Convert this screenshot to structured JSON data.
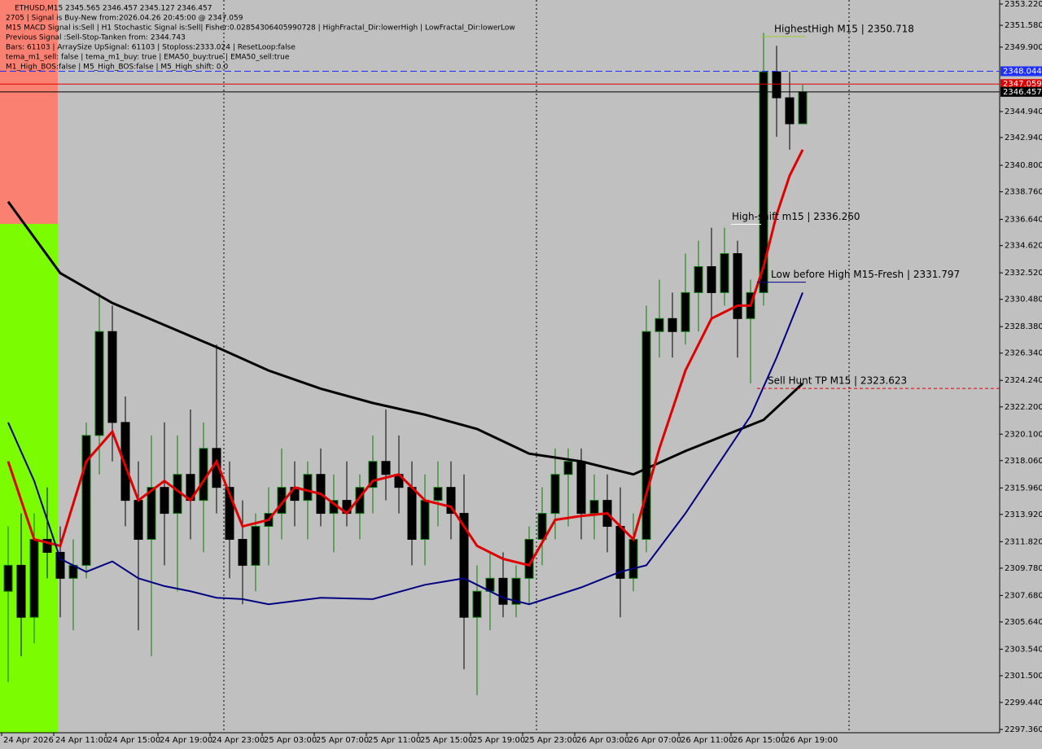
{
  "chart_data": {
    "type": "candlestick",
    "annotations": [
      "ETHUSD,M15  2345.565 2346.457 2345.127 2346.457",
      "2705 | Signal is Buy-New from:2026.04.26 20:45:00 @ 2347.059",
      "M15 MACD Signal is:Sell | H1 Stochastic Signal is:Sell| Fisher:0.02854306405990728 | HighFractal_Dir:lowerHigh | LowFractal_Dir:lowerLow",
      "Previous Signal :Sell-Stop-Tanken from: 2344.743",
      "Bars: 61103 | ArraySize UpSignal: 61103 | Stoploss:2333.024 | ResetLoop:false",
      "tema_m1_sell: false | tema_m1_buy: true | EMA50_buy:true | EMA50_sell:true",
      "M1_High_BOS:false | M5_High_BOS:false | M5_High_shift: 0.0"
    ],
    "categories": [
      "24 Apr 2026",
      null,
      null,
      null,
      "24 Apr 11:00",
      null,
      null,
      null,
      "24 Apr 15:00",
      null,
      null,
      null,
      "24 Apr 19:00",
      null,
      null,
      null,
      "24 Apr 23:00",
      null,
      null,
      null,
      "25 Apr 03:00",
      null,
      null,
      null,
      "25 Apr 07:00",
      null,
      null,
      null,
      "25 Apr 11:00",
      null,
      null,
      null,
      "25 Apr 15:00",
      null,
      null,
      null,
      "25 Apr 19:00",
      null,
      null,
      null,
      "25 Apr 23:00",
      null,
      null,
      null,
      "26 Apr 03:00",
      null,
      null,
      null,
      "26 Apr 07:00",
      null,
      null,
      null,
      "26 Apr 11:00",
      null,
      null,
      null,
      "26 Apr 15:00",
      null,
      null,
      null,
      "26 Apr 19:00",
      null
    ],
    "open": [
      2308,
      2310,
      2306,
      2312,
      2311,
      2309,
      2310,
      2320,
      2328,
      2321,
      2315,
      2312,
      2316,
      2314,
      2317,
      2315,
      2319,
      2316,
      2312,
      2310,
      2313,
      2314,
      2316,
      2315,
      2317,
      2314,
      2315,
      2314,
      2316,
      2318,
      2317,
      2316,
      2312,
      2315,
      2316,
      2314,
      2306,
      2308,
      2309,
      2307,
      2309,
      2312,
      2314,
      2317,
      2318,
      2314,
      2315,
      2313,
      2309,
      2312,
      2328,
      2329,
      2328,
      2331,
      2333,
      2331,
      2334,
      2329,
      2331,
      2348,
      2346,
      2344
    ],
    "high": [
      2313,
      2314,
      2314,
      2316,
      2313,
      2312,
      2321,
      2331,
      2330,
      2323,
      2318,
      2320,
      2321,
      2320,
      2322,
      2321,
      2327,
      2318,
      2315,
      2314,
      2316,
      2319,
      2318,
      2318,
      2319,
      2317,
      2318,
      2317,
      2320,
      2322,
      2320,
      2318,
      2317,
      2318,
      2318,
      2317,
      2310,
      2311,
      2311,
      2310,
      2313,
      2316,
      2319,
      2319,
      2319,
      2317,
      2317,
      2316,
      2314,
      2330,
      2332,
      2331,
      2334,
      2335,
      2336,
      2336,
      2335,
      2332,
      2351,
      2350,
      2348,
      2347
    ],
    "low": [
      2301,
      2303,
      2304,
      2309,
      2306,
      2305,
      2309,
      2317,
      2318,
      2313,
      2305,
      2303,
      2310,
      2308,
      2312,
      2311,
      2314,
      2309,
      2307,
      2308,
      2310,
      2312,
      2313,
      2312,
      2313,
      2311,
      2313,
      2312,
      2314,
      2315,
      2314,
      2310,
      2310,
      2313,
      2312,
      2302,
      2300,
      2305,
      2306,
      2306,
      2307,
      2310,
      2312,
      2313,
      2312,
      2312,
      2311,
      2306,
      2308,
      2311,
      2326,
      2326,
      2327,
      2328,
      2329,
      2330,
      2326,
      2324,
      2330,
      2343,
      2342,
      2344
    ],
    "close": [
      2310,
      2306,
      2312,
      2311,
      2309,
      2310,
      2320,
      2328,
      2321,
      2315,
      2312,
      2316,
      2314,
      2317,
      2315,
      2319,
      2316,
      2312,
      2310,
      2313,
      2314,
      2316,
      2315,
      2317,
      2314,
      2315,
      2314,
      2316,
      2318,
      2317,
      2316,
      2312,
      2315,
      2316,
      2314,
      2306,
      2308,
      2309,
      2307,
      2309,
      2312,
      2314,
      2317,
      2318,
      2314,
      2315,
      2313,
      2309,
      2312,
      2328,
      2329,
      2328,
      2331,
      2333,
      2331,
      2334,
      2329,
      2331,
      2348,
      2346,
      2344,
      2346.457
    ],
    "up_color": "#0a7a0a",
    "down_color": "#000000",
    "lines": [
      {
        "color": "#000000",
        "width": 3,
        "x": [
          0,
          4,
          8,
          12,
          16,
          20,
          24,
          28,
          32,
          36,
          40,
          44,
          48,
          52,
          56,
          58,
          61
        ],
        "values": [
          2338,
          2332.5,
          2330.2,
          2328.5,
          2326.8,
          2325,
          2323.6,
          2322.5,
          2321.6,
          2320.5,
          2318.6,
          2318,
          2317,
          2318.8,
          2320.4,
          2321.2,
          2324
        ]
      },
      {
        "color": "#e00000",
        "width": 3,
        "x": [
          0,
          2,
          4,
          6,
          8,
          10,
          12,
          14,
          16,
          18,
          20,
          22,
          24,
          26,
          28,
          30,
          32,
          34,
          36,
          38,
          40,
          42,
          44,
          46,
          48,
          50,
          52,
          54,
          56,
          57,
          58,
          59,
          60,
          61
        ],
        "values": [
          2318,
          2312,
          2311.5,
          2318,
          2320.3,
          2315,
          2316.5,
          2315,
          2318,
          2313,
          2313.5,
          2316,
          2315.5,
          2314,
          2316.5,
          2317,
          2315,
          2314.5,
          2311.5,
          2310.5,
          2310,
          2313.5,
          2313.8,
          2314,
          2312,
          2319,
          2325,
          2329,
          2330,
          2330,
          2333,
          2337,
          2340,
          2342
        ]
      },
      {
        "color": "#000080",
        "width": 2,
        "x": [
          0,
          2,
          4,
          6,
          8,
          10,
          12,
          14,
          16,
          18,
          20,
          24,
          28,
          32,
          35,
          38,
          40,
          44,
          47,
          49,
          52,
          55,
          57,
          59,
          61
        ],
        "values": [
          2321,
          2316.5,
          2310.5,
          2309.5,
          2310.3,
          2309,
          2308.4,
          2308,
          2307.5,
          2307.4,
          2307,
          2307.5,
          2307.4,
          2308.5,
          2309,
          2307.5,
          2307,
          2308.3,
          2309.5,
          2310,
          2314,
          2318.5,
          2321.5,
          2326,
          2331
        ]
      }
    ],
    "levels": [
      {
        "text": "HighestHigh    M15 | 2350.718",
        "value": 2350.718,
        "color": "#9acd32"
      },
      {
        "text": "High-shift m15 | 2336.260",
        "value": 2336.26,
        "color": "#ffffff"
      },
      {
        "text": "Low before High   M15-Fresh | 2331.797",
        "value": 2331.797,
        "color": "#000080"
      },
      {
        "text": "Sell Hunt TP M15 | 2323.623",
        "value": 2323.623,
        "color": "#e00000"
      }
    ],
    "price_tags": [
      {
        "value": 2348.044,
        "color": "#1f2fff"
      },
      {
        "value": 2347.059,
        "color": "#e00000"
      },
      {
        "value": 2346.457,
        "color": "#000000"
      }
    ],
    "ylim": [
      2297.11,
      2353.53
    ],
    "yticks": [
      {
        "value": 2353.22,
        "label": "2353.220"
      },
      {
        "value": 2351.58,
        "label": "2351.580"
      },
      {
        "value": 2349.9,
        "label": "2349.900"
      },
      {
        "value": 2344.94,
        "label": "2344.940"
      },
      {
        "value": 2342.94,
        "label": "2342.940"
      },
      {
        "value": 2340.8,
        "label": "2340.800"
      },
      {
        "value": 2338.76,
        "label": "2338.760"
      },
      {
        "value": 2336.64,
        "label": "2336.640"
      },
      {
        "value": 2334.62,
        "label": "2334.620"
      },
      {
        "value": 2332.52,
        "label": "2332.520"
      },
      {
        "value": 2330.48,
        "label": "2330.480"
      },
      {
        "value": 2328.38,
        "label": "2328.380"
      },
      {
        "value": 2326.34,
        "label": "2326.340"
      },
      {
        "value": 2324.24,
        "label": "2324.240"
      },
      {
        "value": 2322.2,
        "label": "2322.200"
      },
      {
        "value": 2320.1,
        "label": "2320.100"
      },
      {
        "value": 2318.06,
        "label": "2318.060"
      },
      {
        "value": 2315.96,
        "label": "2315.960"
      },
      {
        "value": 2313.92,
        "label": "2313.920"
      },
      {
        "value": 2311.82,
        "label": "2311.820"
      },
      {
        "value": 2309.78,
        "label": "2309.780"
      },
      {
        "value": 2307.68,
        "label": "2307.680"
      },
      {
        "value": 2305.64,
        "label": "2305.640"
      },
      {
        "value": 2303.54,
        "label": "2303.540"
      },
      {
        "value": 2301.5,
        "label": "2301.500"
      },
      {
        "value": 2299.44,
        "label": "2299.440"
      },
      {
        "value": 2297.36,
        "label": "2297.360"
      }
    ],
    "grid": false
  }
}
